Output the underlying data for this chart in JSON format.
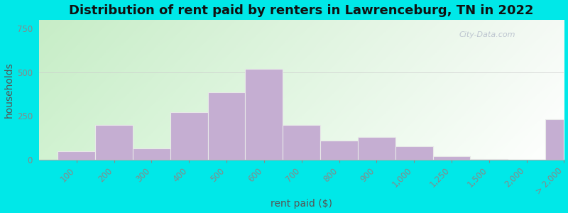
{
  "title": "Distribution of rent paid by renters in Lawrenceburg, TN in 2022",
  "xlabel": "rent paid ($)",
  "ylabel": "households",
  "bar_labels": [
    "100",
    "200",
    "300",
    "400",
    "500",
    "600",
    "700",
    "800",
    "900",
    "1,000",
    "1,250",
    "1,500",
    "2,000",
    "> 2,000"
  ],
  "bar_left_edges": [
    0,
    1,
    2,
    3,
    4,
    5,
    6,
    7,
    8,
    9,
    10,
    11,
    12,
    13
  ],
  "bar_widths": [
    1,
    1,
    1,
    1,
    1,
    1,
    1,
    1,
    1,
    1,
    1,
    1,
    1,
    1
  ],
  "bar_values": [
    50,
    200,
    65,
    270,
    385,
    520,
    200,
    110,
    130,
    75,
    20,
    5,
    0,
    230
  ],
  "bar_color": "#c5aed2",
  "bar_edgecolor": "#e8e8e8",
  "title_fontsize": 13,
  "axis_label_fontsize": 10,
  "tick_fontsize": 8.5,
  "ylim": [
    0,
    800
  ],
  "yticks": [
    0,
    250,
    500,
    750
  ],
  "bg_grad_left": "#cde8c8",
  "bg_grad_right": "#f0f4e0",
  "bg_grad_top": "#e0efda",
  "watermark": "City-Data.com",
  "outer_color": "#00e8e8",
  "tick_positions": [
    0,
    1,
    2,
    3,
    4,
    5,
    6,
    7,
    8,
    9,
    10,
    11,
    12,
    13,
    14
  ],
  "tick_labels": [
    "100",
    "200",
    "300",
    "400",
    "500",
    "600",
    "700",
    "800",
    "900",
    "1,000",
    "1,250",
    "1,500",
    "2,000",
    "> 2,000",
    ""
  ]
}
